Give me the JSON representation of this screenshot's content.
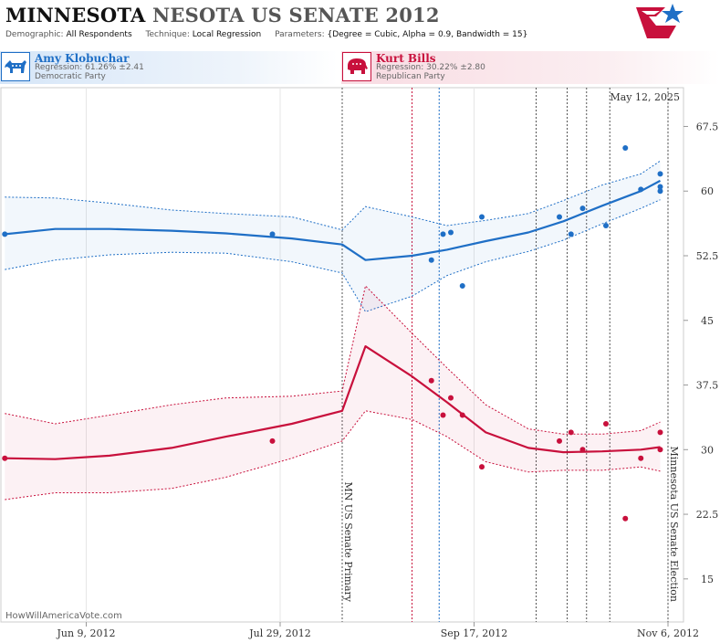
{
  "header": {
    "title_main": "MINNESOTA",
    "title_sub": "NESOTA US SENATE 2012",
    "demographic_label": "Demographic:",
    "demographic_value": "All Respondents",
    "technique_label": "Technique:",
    "technique_value": "Local Regression",
    "parameters_label": "Parameters:",
    "parameters_value": "{Degree = Cubic, Alpha = 0.9, Bandwidth = 15}"
  },
  "candidates": {
    "dem": {
      "name": "Amy Klobuchar",
      "regression": "Regression: 61.26% ±2.41",
      "party": "Democratic Party",
      "color": "#1f6fc6"
    },
    "rep": {
      "name": "Kurt Bills",
      "regression": "Regression: 30.22% ±2.80",
      "party": "Republican Party",
      "color": "#c8103c"
    }
  },
  "chart_data": {
    "type": "line",
    "date_label": "May 12, 2025",
    "watermark": "HowWillAmericaVote.com",
    "x_range": [
      "2012-05-18",
      "2012-11-10"
    ],
    "y_range": [
      10,
      72
    ],
    "x_ticks": [
      {
        "date": "2012-06-09",
        "label": "Jun 9, 2012"
      },
      {
        "date": "2012-07-29",
        "label": "Jul 29, 2012"
      },
      {
        "date": "2012-09-17",
        "label": "Sep 17, 2012"
      },
      {
        "date": "2012-11-06",
        "label": "Nov 6, 2012"
      }
    ],
    "x_minor_ticks": [
      "2012-06-09",
      "2012-07-29",
      "2012-09-17",
      "2012-11-06"
    ],
    "y_ticks": [
      15,
      22.5,
      30,
      37.5,
      45,
      52.5,
      60,
      67.5
    ],
    "events": [
      {
        "date": "2012-08-14",
        "label": "MN US Senate Primary",
        "color": "#555555"
      },
      {
        "date": "2012-09-01",
        "label": "",
        "color": "#c8103c"
      },
      {
        "date": "2012-09-08",
        "label": "",
        "color": "#1f6fc6"
      },
      {
        "date": "2012-10-03",
        "label": "",
        "color": "#555555"
      },
      {
        "date": "2012-10-11",
        "label": "",
        "color": "#555555"
      },
      {
        "date": "2012-10-16",
        "label": "",
        "color": "#555555"
      },
      {
        "date": "2012-10-22",
        "label": "",
        "color": "#555555"
      },
      {
        "date": "2012-11-06",
        "label": "Minnesota US Senate Election",
        "color": "#555555"
      }
    ],
    "series": [
      {
        "name": "Amy Klobuchar",
        "color": "#1f6fc6",
        "points": [
          [
            "2012-05-19",
            55
          ],
          [
            "2012-07-27",
            55
          ],
          [
            "2012-09-06",
            52
          ],
          [
            "2012-09-09",
            55
          ],
          [
            "2012-09-11",
            55.2
          ],
          [
            "2012-09-14",
            49
          ],
          [
            "2012-09-19",
            57
          ],
          [
            "2012-10-09",
            57
          ],
          [
            "2012-10-12",
            55
          ],
          [
            "2012-10-15",
            58
          ],
          [
            "2012-10-21",
            56
          ],
          [
            "2012-10-26",
            65
          ],
          [
            "2012-10-30",
            60.2
          ],
          [
            "2012-11-04",
            60.5
          ],
          [
            "2012-11-04",
            60
          ],
          [
            "2012-11-04",
            62
          ]
        ],
        "fit": [
          [
            "2012-05-19",
            55
          ],
          [
            "2012-06-01",
            55.6
          ],
          [
            "2012-06-15",
            55.6
          ],
          [
            "2012-07-01",
            55.4
          ],
          [
            "2012-07-15",
            55.1
          ],
          [
            "2012-08-01",
            54.5
          ],
          [
            "2012-08-14",
            53.8
          ],
          [
            "2012-08-20",
            52
          ],
          [
            "2012-09-01",
            52.5
          ],
          [
            "2012-09-10",
            53.2
          ],
          [
            "2012-09-20",
            54.2
          ],
          [
            "2012-10-01",
            55.2
          ],
          [
            "2012-10-10",
            56.5
          ],
          [
            "2012-10-20",
            58.3
          ],
          [
            "2012-10-30",
            60
          ],
          [
            "2012-11-04",
            61.2
          ]
        ],
        "upper": [
          [
            "2012-05-19",
            59.3
          ],
          [
            "2012-06-01",
            59.2
          ],
          [
            "2012-06-15",
            58.6
          ],
          [
            "2012-07-01",
            57.8
          ],
          [
            "2012-07-15",
            57.4
          ],
          [
            "2012-08-01",
            57
          ],
          [
            "2012-08-14",
            55.5
          ],
          [
            "2012-08-20",
            58.2
          ],
          [
            "2012-09-01",
            57
          ],
          [
            "2012-09-10",
            56
          ],
          [
            "2012-09-20",
            56.6
          ],
          [
            "2012-10-01",
            57.4
          ],
          [
            "2012-10-10",
            58.9
          ],
          [
            "2012-10-20",
            60.7
          ],
          [
            "2012-10-30",
            62
          ],
          [
            "2012-11-04",
            63.5
          ]
        ],
        "lower": [
          [
            "2012-05-19",
            50.9
          ],
          [
            "2012-06-01",
            52
          ],
          [
            "2012-06-15",
            52.6
          ],
          [
            "2012-07-01",
            52.9
          ],
          [
            "2012-07-15",
            52.8
          ],
          [
            "2012-08-01",
            51.8
          ],
          [
            "2012-08-14",
            50.5
          ],
          [
            "2012-08-20",
            46
          ],
          [
            "2012-09-01",
            47.8
          ],
          [
            "2012-09-10",
            50.2
          ],
          [
            "2012-09-20",
            51.8
          ],
          [
            "2012-10-01",
            53
          ],
          [
            "2012-10-10",
            54.3
          ],
          [
            "2012-10-20",
            56.2
          ],
          [
            "2012-10-30",
            58
          ],
          [
            "2012-11-04",
            59
          ]
        ]
      },
      {
        "name": "Kurt Bills",
        "color": "#c8103c",
        "points": [
          [
            "2012-05-19",
            29
          ],
          [
            "2012-07-27",
            31
          ],
          [
            "2012-09-06",
            38
          ],
          [
            "2012-09-09",
            34
          ],
          [
            "2012-09-11",
            36
          ],
          [
            "2012-09-14",
            34
          ],
          [
            "2012-09-19",
            28
          ],
          [
            "2012-10-09",
            31
          ],
          [
            "2012-10-12",
            32
          ],
          [
            "2012-10-15",
            30
          ],
          [
            "2012-10-21",
            33
          ],
          [
            "2012-10-26",
            22
          ],
          [
            "2012-10-30",
            29
          ],
          [
            "2012-11-04",
            30
          ],
          [
            "2012-11-04",
            32
          ]
        ],
        "fit": [
          [
            "2012-05-19",
            29
          ],
          [
            "2012-06-01",
            28.9
          ],
          [
            "2012-06-15",
            29.3
          ],
          [
            "2012-07-01",
            30.2
          ],
          [
            "2012-07-15",
            31.5
          ],
          [
            "2012-08-01",
            33
          ],
          [
            "2012-08-14",
            34.5
          ],
          [
            "2012-08-20",
            42
          ],
          [
            "2012-09-01",
            38.5
          ],
          [
            "2012-09-10",
            35.5
          ],
          [
            "2012-09-20",
            32
          ],
          [
            "2012-10-01",
            30.2
          ],
          [
            "2012-10-10",
            29.7
          ],
          [
            "2012-10-20",
            29.8
          ],
          [
            "2012-10-30",
            30
          ],
          [
            "2012-11-04",
            30.3
          ]
        ],
        "upper": [
          [
            "2012-05-19",
            34.2
          ],
          [
            "2012-06-01",
            33
          ],
          [
            "2012-06-15",
            34
          ],
          [
            "2012-07-01",
            35.2
          ],
          [
            "2012-07-15",
            36
          ],
          [
            "2012-08-01",
            36.2
          ],
          [
            "2012-08-14",
            36.8
          ],
          [
            "2012-08-20",
            49
          ],
          [
            "2012-09-01",
            43.5
          ],
          [
            "2012-09-10",
            39.5
          ],
          [
            "2012-09-20",
            35.2
          ],
          [
            "2012-10-01",
            32.4
          ],
          [
            "2012-10-10",
            31.8
          ],
          [
            "2012-10-20",
            31.8
          ],
          [
            "2012-10-30",
            32.2
          ],
          [
            "2012-11-04",
            33.2
          ]
        ],
        "lower": [
          [
            "2012-05-19",
            24.2
          ],
          [
            "2012-06-01",
            25
          ],
          [
            "2012-06-15",
            25
          ],
          [
            "2012-07-01",
            25.5
          ],
          [
            "2012-07-15",
            26.8
          ],
          [
            "2012-08-01",
            29
          ],
          [
            "2012-08-14",
            31
          ],
          [
            "2012-08-20",
            34.5
          ],
          [
            "2012-09-01",
            33.5
          ],
          [
            "2012-09-10",
            31.5
          ],
          [
            "2012-09-20",
            28.6
          ],
          [
            "2012-10-01",
            27.4
          ],
          [
            "2012-10-10",
            27.6
          ],
          [
            "2012-10-20",
            27.6
          ],
          [
            "2012-10-30",
            28
          ],
          [
            "2012-11-04",
            27.5
          ]
        ]
      }
    ]
  }
}
